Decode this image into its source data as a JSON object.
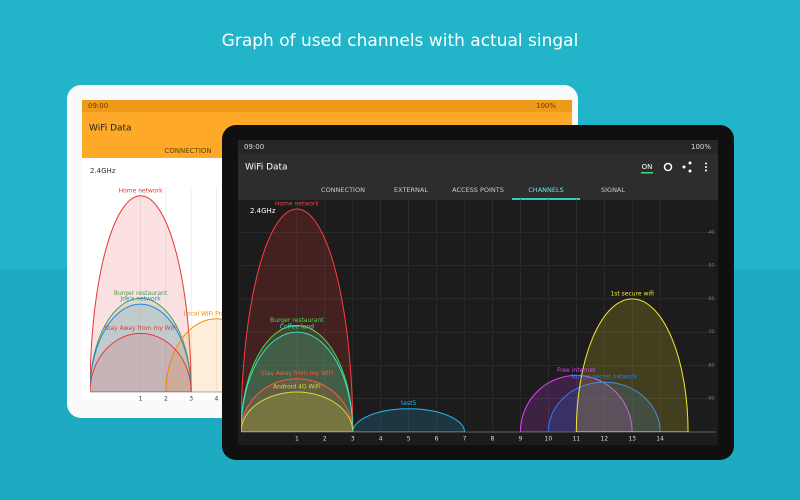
{
  "headline": "Graph of used channels with actual singal",
  "back_tablet": {
    "status_time": "09:00",
    "battery": "100%",
    "app_title": "WiFi Data",
    "tab": "CONNECTION",
    "band": "2.4GHz",
    "graph": {
      "xlim": [
        -1,
        16
      ],
      "ylim": [
        -100,
        -30
      ],
      "xticks": [
        1,
        2,
        3,
        4
      ],
      "networks": [
        {
          "name": "Home network",
          "color": "#e53935",
          "channel": 1,
          "level": -33
        },
        {
          "name": "Burger restaurant",
          "color": "#43a047",
          "channel": 1,
          "level": -68
        },
        {
          "name": "Joe's network",
          "color": "#1e88e5",
          "channel": 1,
          "level": -70
        },
        {
          "name": "Local WiFi Provider 25",
          "color": "#fb8c00",
          "channel": 4,
          "level": -75
        },
        {
          "name": "Stay Away from my WiFi",
          "color": "#e53935",
          "channel": 1,
          "level": -80
        }
      ]
    }
  },
  "front_tablet": {
    "status_time": "09:00",
    "battery": "100%",
    "app_title": "WiFi Data",
    "toggle": "ON",
    "tabs": [
      "CONNECTION",
      "EXTERNAL",
      "ACCESS POINTS",
      "CHANNELS",
      "SIGNAL"
    ],
    "active_tab": 3,
    "band": "2.4GHz",
    "graph": {
      "xlim": [
        -1,
        16
      ],
      "ylim": [
        -100,
        -30
      ],
      "xticks": [
        1,
        2,
        3,
        4,
        5,
        6,
        7,
        8,
        9,
        10,
        11,
        12,
        13,
        14
      ],
      "yticks": [
        -40,
        -50,
        -60,
        -70,
        -80,
        -90
      ],
      "networks": [
        {
          "name": "Home network",
          "color": "#ff3b3b",
          "channel": 1,
          "level": -33
        },
        {
          "name": "Burger restaurant",
          "color": "#4cdc4c",
          "channel": 1,
          "level": -68
        },
        {
          "name": "Coffee land",
          "color": "#35e0d0",
          "channel": 1,
          "level": -70
        },
        {
          "name": "Stay Away from my WiFi",
          "color": "#ff5a3a",
          "channel": 1,
          "level": -84
        },
        {
          "name": "Android 4G WiFi",
          "color": "#c8e03a",
          "channel": 1,
          "level": -88
        },
        {
          "name": "test5",
          "color": "#29b6f6",
          "channel": 5,
          "level": -93
        },
        {
          "name": "Free internet",
          "color": "#e040fb",
          "channel": 11,
          "level": -83
        },
        {
          "name": "Not so secret network",
          "color": "#2979ff",
          "channel": 12,
          "level": -85
        },
        {
          "name": "1st secure wifi",
          "color": "#f5e632",
          "channel": 13,
          "level": -60
        }
      ]
    }
  }
}
